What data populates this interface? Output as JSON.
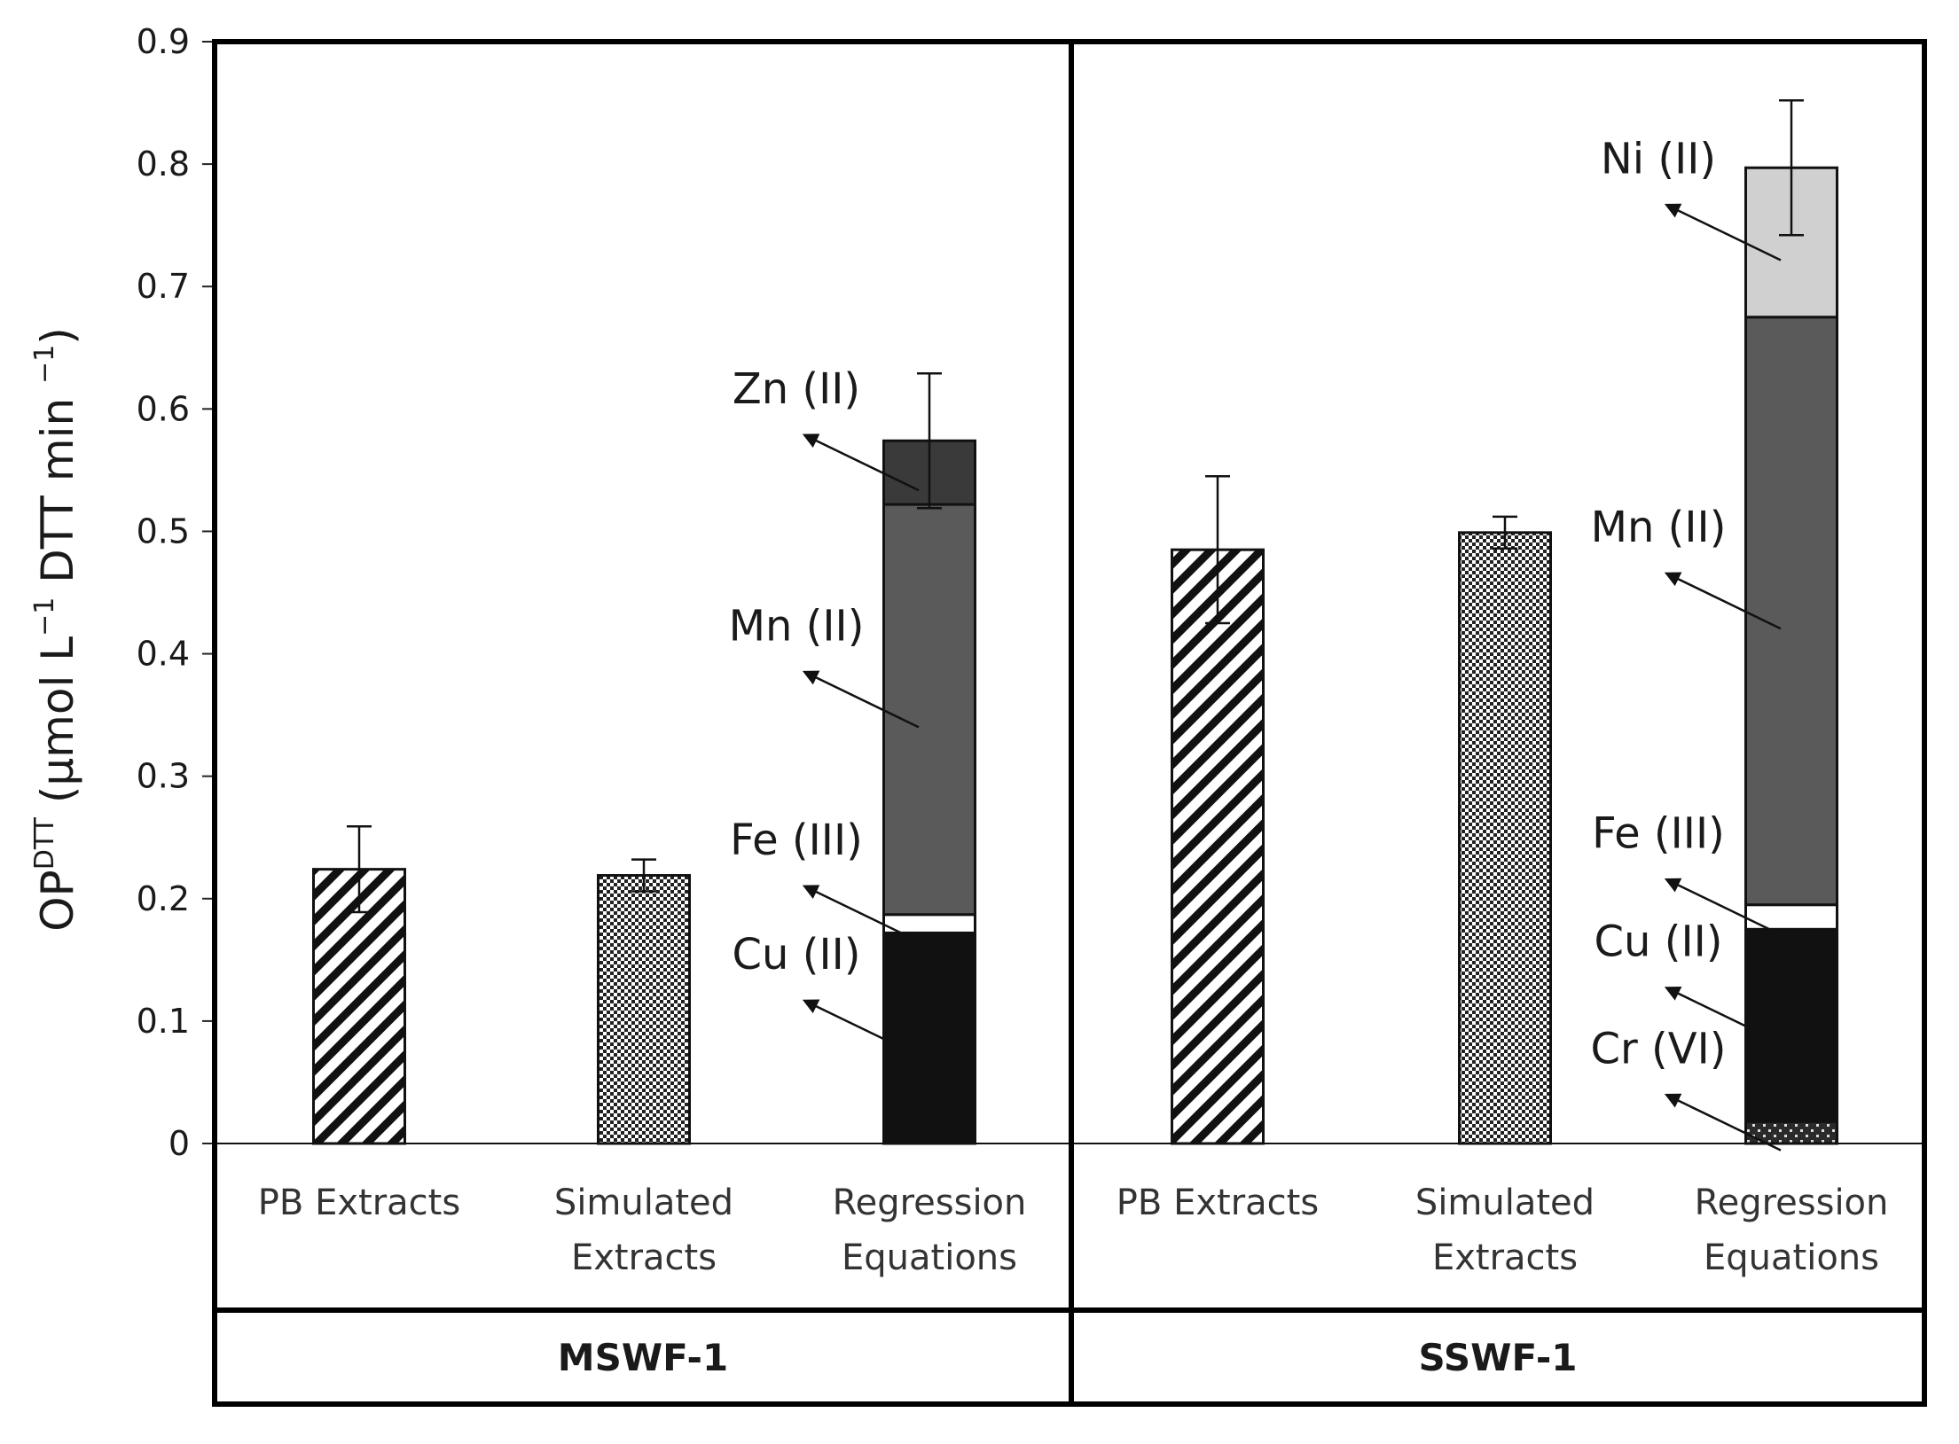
{
  "chart_data": {
    "type": "bar",
    "stacked_bars": true,
    "ylabel": {
      "main": "OP",
      "sup1": "DTT",
      "unit_pre": "(μmol L",
      "sup2": "−1",
      "unit_mid": " DTT min ",
      "sup3": "−1",
      "unit_post": ")"
    },
    "ylim": [
      0,
      0.9
    ],
    "yticks": [
      "0",
      "0.1",
      "0.2",
      "0.3",
      "0.4",
      "0.5",
      "0.6",
      "0.7",
      "0.8",
      "0.9"
    ],
    "component_colors": {
      "Cr (VI)": "#bbbbbb",
      "Cu (II)": "#111111",
      "Fe (III)": "#ffffff",
      "Mn (II)": "#5a5a5a",
      "Zn (II)": "#3a3a3a",
      "Ni (II)": "#d0d0d0"
    },
    "groups": [
      {
        "name": "MSWF-1",
        "bars": [
          {
            "category_line1": "PB Extracts",
            "category_line2": "",
            "pattern": "hatch",
            "value": 0.224,
            "error": 0.035
          },
          {
            "category_line1": "Simulated",
            "category_line2": "Extracts",
            "pattern": "checker",
            "value": 0.219,
            "error": 0.013
          },
          {
            "category_line1": "Regression",
            "category_line2": "Equations",
            "pattern": "stacked",
            "error": 0.055,
            "segments": [
              {
                "component": "Cu (II)",
                "value": 0.172,
                "label": "Cu (II)"
              },
              {
                "component": "Fe (III)",
                "value": 0.015,
                "label": "Fe (III)"
              },
              {
                "component": "Mn (II)",
                "value": 0.335,
                "label": "Mn (II)"
              },
              {
                "component": "Zn (II)",
                "value": 0.052,
                "label": "Zn (II)"
              }
            ]
          }
        ]
      },
      {
        "name": "SSWF-1",
        "bars": [
          {
            "category_line1": "PB Extracts",
            "category_line2": "",
            "pattern": "hatch",
            "value": 0.485,
            "error": 0.06
          },
          {
            "category_line1": "Simulated",
            "category_line2": "Extracts",
            "pattern": "checker",
            "value": 0.499,
            "error": 0.013
          },
          {
            "category_line1": "Regression",
            "category_line2": "Equations",
            "pattern": "stacked",
            "error": 0.055,
            "segments": [
              {
                "component": "Cr (VI)",
                "value": 0.018,
                "label": "Cr (VI)"
              },
              {
                "component": "Cu (II)",
                "value": 0.157,
                "label": "Cu (II)"
              },
              {
                "component": "Fe (III)",
                "value": 0.02,
                "label": "Fe (III)"
              },
              {
                "component": "Mn (II)",
                "value": 0.48,
                "label": "Mn (II)"
              },
              {
                "component": "Ni (II)",
                "value": 0.122,
                "label": "Ni (II)"
              }
            ]
          }
        ]
      }
    ]
  }
}
